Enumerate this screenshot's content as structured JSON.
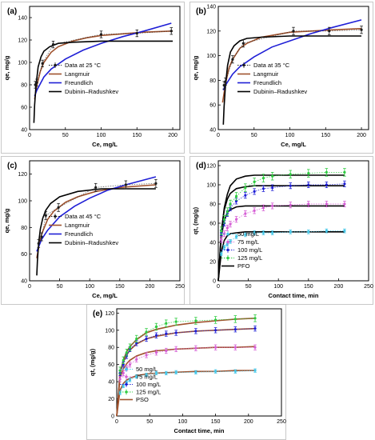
{
  "figure": {
    "background": "#ffffff",
    "axis_color": "#000000"
  },
  "chart_data": [
    {
      "panel": "(a)",
      "type": "line",
      "xlabel": "Ce, mg/L",
      "ylabel": "qe, mg/g",
      "xlim": [
        0,
        210
      ],
      "ylim": [
        40,
        150
      ],
      "xticks": [
        0,
        50,
        100,
        150,
        200
      ],
      "yticks": [
        40,
        60,
        80,
        100,
        120,
        140
      ],
      "legend": "center",
      "series": [
        {
          "name": "Data at 25 °C",
          "kind": "points",
          "color": "#1a1a1a",
          "x": [
            8,
            10,
            18,
            33,
            100,
            150,
            198
          ],
          "y": [
            80,
            82,
            99,
            116,
            125,
            126,
            128
          ],
          "err": [
            3,
            3,
            3,
            3,
            3,
            3,
            3
          ]
        },
        {
          "name": "Langmuir",
          "kind": "line",
          "color": "#a0522d",
          "x": [
            7,
            10,
            15,
            20,
            30,
            40,
            60,
            80,
            100,
            130,
            160,
            200
          ],
          "y": [
            67,
            79,
            92,
            100,
            109,
            114,
            119,
            122,
            124,
            125.5,
            127,
            128
          ]
        },
        {
          "name": "Freundlich",
          "kind": "line",
          "color": "#1f1fd6",
          "x": [
            7,
            10,
            20,
            30,
            50,
            75,
            100,
            130,
            160,
            198
          ],
          "y": [
            70,
            75,
            87,
            94,
            103,
            111,
            117,
            123,
            128,
            135
          ]
        },
        {
          "name": "Dubinin–Radushkev",
          "kind": "line",
          "color": "#000000",
          "x": [
            6,
            7,
            9,
            12,
            16,
            20,
            28,
            40,
            60,
            100,
            150,
            200
          ],
          "y": [
            46,
            62,
            80,
            96,
            105,
            110,
            114,
            117,
            118,
            119,
            119,
            119
          ]
        }
      ]
    },
    {
      "panel": "(b)",
      "type": "line",
      "xlabel": "Ce, mg/L",
      "ylabel": "qe, mg/g",
      "xlim": [
        0,
        210
      ],
      "ylim": [
        40,
        140
      ],
      "xticks": [
        0,
        50,
        100,
        150,
        200
      ],
      "yticks": [
        40,
        60,
        80,
        100,
        120,
        140
      ],
      "legend": "center",
      "series": [
        {
          "name": "Data at 35 °C",
          "kind": "points",
          "color": "#1a1a1a",
          "x": [
            8,
            10,
            20,
            35,
            105,
            155,
            200
          ],
          "y": [
            76,
            79,
            97,
            110,
            120,
            120,
            121
          ],
          "err": [
            3,
            3,
            3,
            3,
            3,
            3,
            3
          ]
        },
        {
          "name": "Langmuir",
          "kind": "line",
          "color": "#a0522d",
          "x": [
            6,
            10,
            15,
            20,
            30,
            40,
            60,
            80,
            100,
            130,
            160,
            200
          ],
          "y": [
            62,
            77,
            90,
            97,
            106,
            110,
            115,
            117,
            119,
            120,
            121,
            122
          ]
        },
        {
          "name": "Freundlich",
          "kind": "line",
          "color": "#1f1fd6",
          "x": [
            7,
            10,
            20,
            30,
            50,
            75,
            100,
            130,
            160,
            200
          ],
          "y": [
            72,
            76,
            85,
            91,
            99,
            107,
            112,
            118,
            123,
            129
          ]
        },
        {
          "name": "Dubinin–Radushkev",
          "kind": "line",
          "color": "#000000",
          "x": [
            7,
            8,
            10,
            13,
            17,
            22,
            30,
            40,
            60,
            100,
            150,
            200
          ],
          "y": [
            44,
            58,
            76,
            92,
            103,
            108,
            112,
            114,
            115,
            116,
            116,
            116
          ]
        }
      ]
    },
    {
      "panel": "(c)",
      "type": "line",
      "xlabel": "Ce, mg/L",
      "ylabel": "qe, mg/g",
      "xlim": [
        0,
        250
      ],
      "ylim": [
        40,
        130
      ],
      "xticks": [
        0,
        50,
        100,
        150,
        200,
        250
      ],
      "yticks": [
        40,
        60,
        80,
        100,
        120
      ],
      "legend": "center",
      "series": [
        {
          "name": "Data at 45 °C",
          "kind": "points",
          "color": "#1a1a1a",
          "x": [
            15,
            20,
            27,
            48,
            110,
            160,
            210
          ],
          "y": [
            68,
            73,
            89,
            95,
            110,
            112,
            113
          ],
          "err": [
            3,
            3,
            3,
            3,
            3,
            3,
            3
          ]
        },
        {
          "name": "Langmuir",
          "kind": "line",
          "color": "#a0522d",
          "x": [
            12,
            15,
            20,
            30,
            40,
            60,
            80,
            110,
            150,
            210
          ],
          "y": [
            57,
            65,
            75,
            86,
            92,
            99,
            103,
            107,
            110,
            112
          ]
        },
        {
          "name": "Freundlich",
          "kind": "line",
          "color": "#1f1fd6",
          "x": [
            12,
            20,
            30,
            50,
            75,
            100,
            130,
            160,
            210
          ],
          "y": [
            62,
            71,
            78,
            88,
            96,
            102,
            108,
            112,
            118
          ]
        },
        {
          "name": "Dubinin–Radushkev",
          "kind": "line",
          "color": "#000000",
          "x": [
            12,
            13,
            15,
            18,
            22,
            27,
            35,
            50,
            80,
            120,
            160,
            210
          ],
          "y": [
            44,
            55,
            68,
            79,
            87,
            93,
            98,
            103,
            107,
            109,
            109,
            109
          ]
        }
      ]
    },
    {
      "panel": "(d)",
      "type": "line",
      "xlabel": "Contact time, min",
      "ylabel": "qt, (mg/g)",
      "xlim": [
        0,
        250
      ],
      "ylim": [
        0,
        125
      ],
      "xticks": [
        0,
        50,
        100,
        150,
        200,
        250
      ],
      "yticks": [
        0,
        20,
        40,
        60,
        80,
        100,
        120
      ],
      "legend": "bottom-left",
      "series": [
        {
          "name": "50 mg/L",
          "kind": "points",
          "color": "#43c6e8",
          "x": [
            5,
            10,
            15,
            20,
            30,
            45,
            60,
            75,
            90,
            120,
            150,
            180,
            210
          ],
          "y": [
            28,
            35,
            38,
            41,
            46,
            48,
            50,
            50,
            50,
            51,
            51,
            52,
            52
          ],
          "err": [
            2,
            2,
            2,
            2,
            2,
            2,
            2,
            2,
            2,
            2,
            2,
            2,
            2
          ]
        },
        {
          "name": "75 mg/L",
          "kind": "points",
          "color": "#d65fd6",
          "x": [
            5,
            10,
            15,
            20,
            30,
            45,
            60,
            75,
            90,
            120,
            150,
            180,
            210
          ],
          "y": [
            43,
            49,
            55,
            59,
            64,
            70,
            73,
            76,
            78,
            79,
            80,
            80,
            80
          ],
          "err": [
            3,
            3,
            3,
            3,
            3,
            3,
            3,
            3,
            3,
            3,
            3,
            3,
            3
          ]
        },
        {
          "name": "100 mg/L",
          "kind": "points",
          "color": "#1f1fd6",
          "x": [
            5,
            10,
            15,
            20,
            30,
            45,
            60,
            75,
            90,
            120,
            150,
            180,
            210
          ],
          "y": [
            50,
            60,
            70,
            76,
            83,
            89,
            93,
            96,
            97,
            99,
            100,
            100,
            101
          ],
          "err": [
            3,
            3,
            3,
            3,
            3,
            3,
            3,
            3,
            3,
            3,
            3,
            3,
            3
          ]
        },
        {
          "name": "125 mg/L",
          "kind": "points",
          "color": "#2ecc40",
          "x": [
            5,
            10,
            15,
            20,
            30,
            45,
            60,
            75,
            90,
            120,
            150,
            180,
            210
          ],
          "y": [
            52,
            64,
            72,
            80,
            88,
            97,
            103,
            107,
            109,
            111,
            112,
            113,
            113
          ],
          "err": [
            4,
            4,
            4,
            4,
            4,
            4,
            4,
            4,
            4,
            4,
            4,
            4,
            4
          ]
        },
        {
          "name": "PFO",
          "kind": "line",
          "color": "#000000",
          "x": [
            0,
            5,
            10,
            15,
            20,
            30,
            45,
            60,
            90,
            120,
            150,
            180,
            210
          ],
          "y": [
            0,
            30,
            42,
            47,
            49,
            50,
            51,
            51,
            51,
            51,
            51,
            51,
            51
          ]
        },
        {
          "name": "",
          "kind": "line",
          "color": "#000000",
          "x": [
            0,
            5,
            10,
            15,
            20,
            30,
            45,
            60,
            90,
            120,
            150,
            180,
            210
          ],
          "y": [
            0,
            46,
            63,
            71,
            74,
            77,
            78,
            78,
            78,
            78,
            78,
            78,
            78
          ]
        },
        {
          "name": "",
          "kind": "line",
          "color": "#000000",
          "x": [
            0,
            5,
            10,
            15,
            20,
            30,
            45,
            60,
            90,
            120,
            150,
            180,
            210
          ],
          "y": [
            0,
            52,
            74,
            85,
            91,
            96,
            98,
            99,
            99,
            99,
            99,
            99,
            99
          ]
        },
        {
          "name": "",
          "kind": "line",
          "color": "#000000",
          "x": [
            0,
            5,
            10,
            15,
            20,
            30,
            45,
            60,
            90,
            120,
            150,
            180,
            210
          ],
          "y": [
            0,
            50,
            76,
            90,
            99,
            106,
            109,
            110,
            110,
            110,
            110,
            110,
            110
          ]
        }
      ]
    },
    {
      "panel": "(e)",
      "type": "line",
      "xlabel": "Contact time, min",
      "ylabel": "qt, (mg/g)",
      "xlim": [
        0,
        250
      ],
      "ylim": [
        0,
        125
      ],
      "xticks": [
        0,
        50,
        100,
        150,
        200,
        250
      ],
      "yticks": [
        0,
        20,
        40,
        60,
        80,
        100,
        120
      ],
      "legend": "bottom-left",
      "series": [
        {
          "name": "50 mg/L",
          "kind": "points",
          "color": "#43c6e8",
          "x": [
            5,
            10,
            15,
            20,
            30,
            45,
            60,
            75,
            90,
            120,
            150,
            180,
            210
          ],
          "y": [
            27,
            35,
            39,
            42,
            46,
            48,
            50,
            50,
            51,
            51,
            52,
            52,
            53
          ],
          "err": [
            2,
            2,
            2,
            2,
            2,
            2,
            2,
            2,
            2,
            2,
            2,
            2,
            2
          ]
        },
        {
          "name": "75 mg/L",
          "kind": "points",
          "color": "#d65fd6",
          "x": [
            5,
            10,
            15,
            20,
            30,
            45,
            60,
            75,
            90,
            120,
            150,
            180,
            210
          ],
          "y": [
            43,
            50,
            56,
            60,
            66,
            71,
            74,
            76,
            78,
            79,
            80,
            80,
            80
          ],
          "err": [
            3,
            3,
            3,
            3,
            3,
            3,
            3,
            3,
            3,
            3,
            3,
            3,
            3
          ]
        },
        {
          "name": "100 mg/L",
          "kind": "points",
          "color": "#1f1fd6",
          "x": [
            5,
            10,
            15,
            20,
            30,
            45,
            60,
            75,
            90,
            120,
            150,
            180,
            210
          ],
          "y": [
            50,
            60,
            70,
            78,
            85,
            90,
            94,
            96,
            97,
            99,
            100,
            101,
            102
          ],
          "err": [
            3,
            3,
            3,
            3,
            3,
            3,
            3,
            3,
            3,
            3,
            3,
            3,
            3
          ]
        },
        {
          "name": "125 mg/L",
          "kind": "points",
          "color": "#2ecc40",
          "x": [
            5,
            10,
            15,
            20,
            30,
            45,
            60,
            75,
            90,
            120,
            150,
            180,
            210
          ],
          "y": [
            53,
            65,
            74,
            80,
            90,
            98,
            104,
            108,
            110,
            111,
            112,
            113,
            114
          ],
          "err": [
            4,
            4,
            4,
            4,
            4,
            4,
            4,
            4,
            4,
            4,
            4,
            4,
            4
          ]
        },
        {
          "name": "PSO",
          "kind": "line",
          "color": "#a0522d",
          "x": [
            0,
            5,
            10,
            15,
            20,
            30,
            45,
            60,
            90,
            120,
            150,
            180,
            210
          ],
          "y": [
            0,
            30,
            38,
            42,
            44,
            47,
            49,
            50,
            51,
            52,
            52,
            53,
            53
          ]
        },
        {
          "name": "",
          "kind": "line",
          "color": "#a0522d",
          "x": [
            0,
            5,
            10,
            15,
            20,
            30,
            45,
            60,
            90,
            120,
            150,
            180,
            210
          ],
          "y": [
            0,
            45,
            55,
            61,
            65,
            70,
            74,
            76,
            78,
            79,
            80,
            80,
            81
          ]
        },
        {
          "name": "",
          "kind": "line",
          "color": "#a0522d",
          "x": [
            0,
            5,
            10,
            15,
            20,
            30,
            45,
            60,
            90,
            120,
            150,
            180,
            210
          ],
          "y": [
            0,
            50,
            63,
            71,
            77,
            84,
            90,
            93,
            97,
            99,
            100,
            101,
            102
          ]
        },
        {
          "name": "",
          "kind": "line",
          "color": "#a0522d",
          "x": [
            0,
            5,
            10,
            15,
            20,
            30,
            45,
            60,
            90,
            120,
            150,
            180,
            210
          ],
          "y": [
            0,
            50,
            65,
            75,
            81,
            89,
            97,
            101,
            106,
            109,
            111,
            113,
            114
          ]
        }
      ]
    }
  ]
}
